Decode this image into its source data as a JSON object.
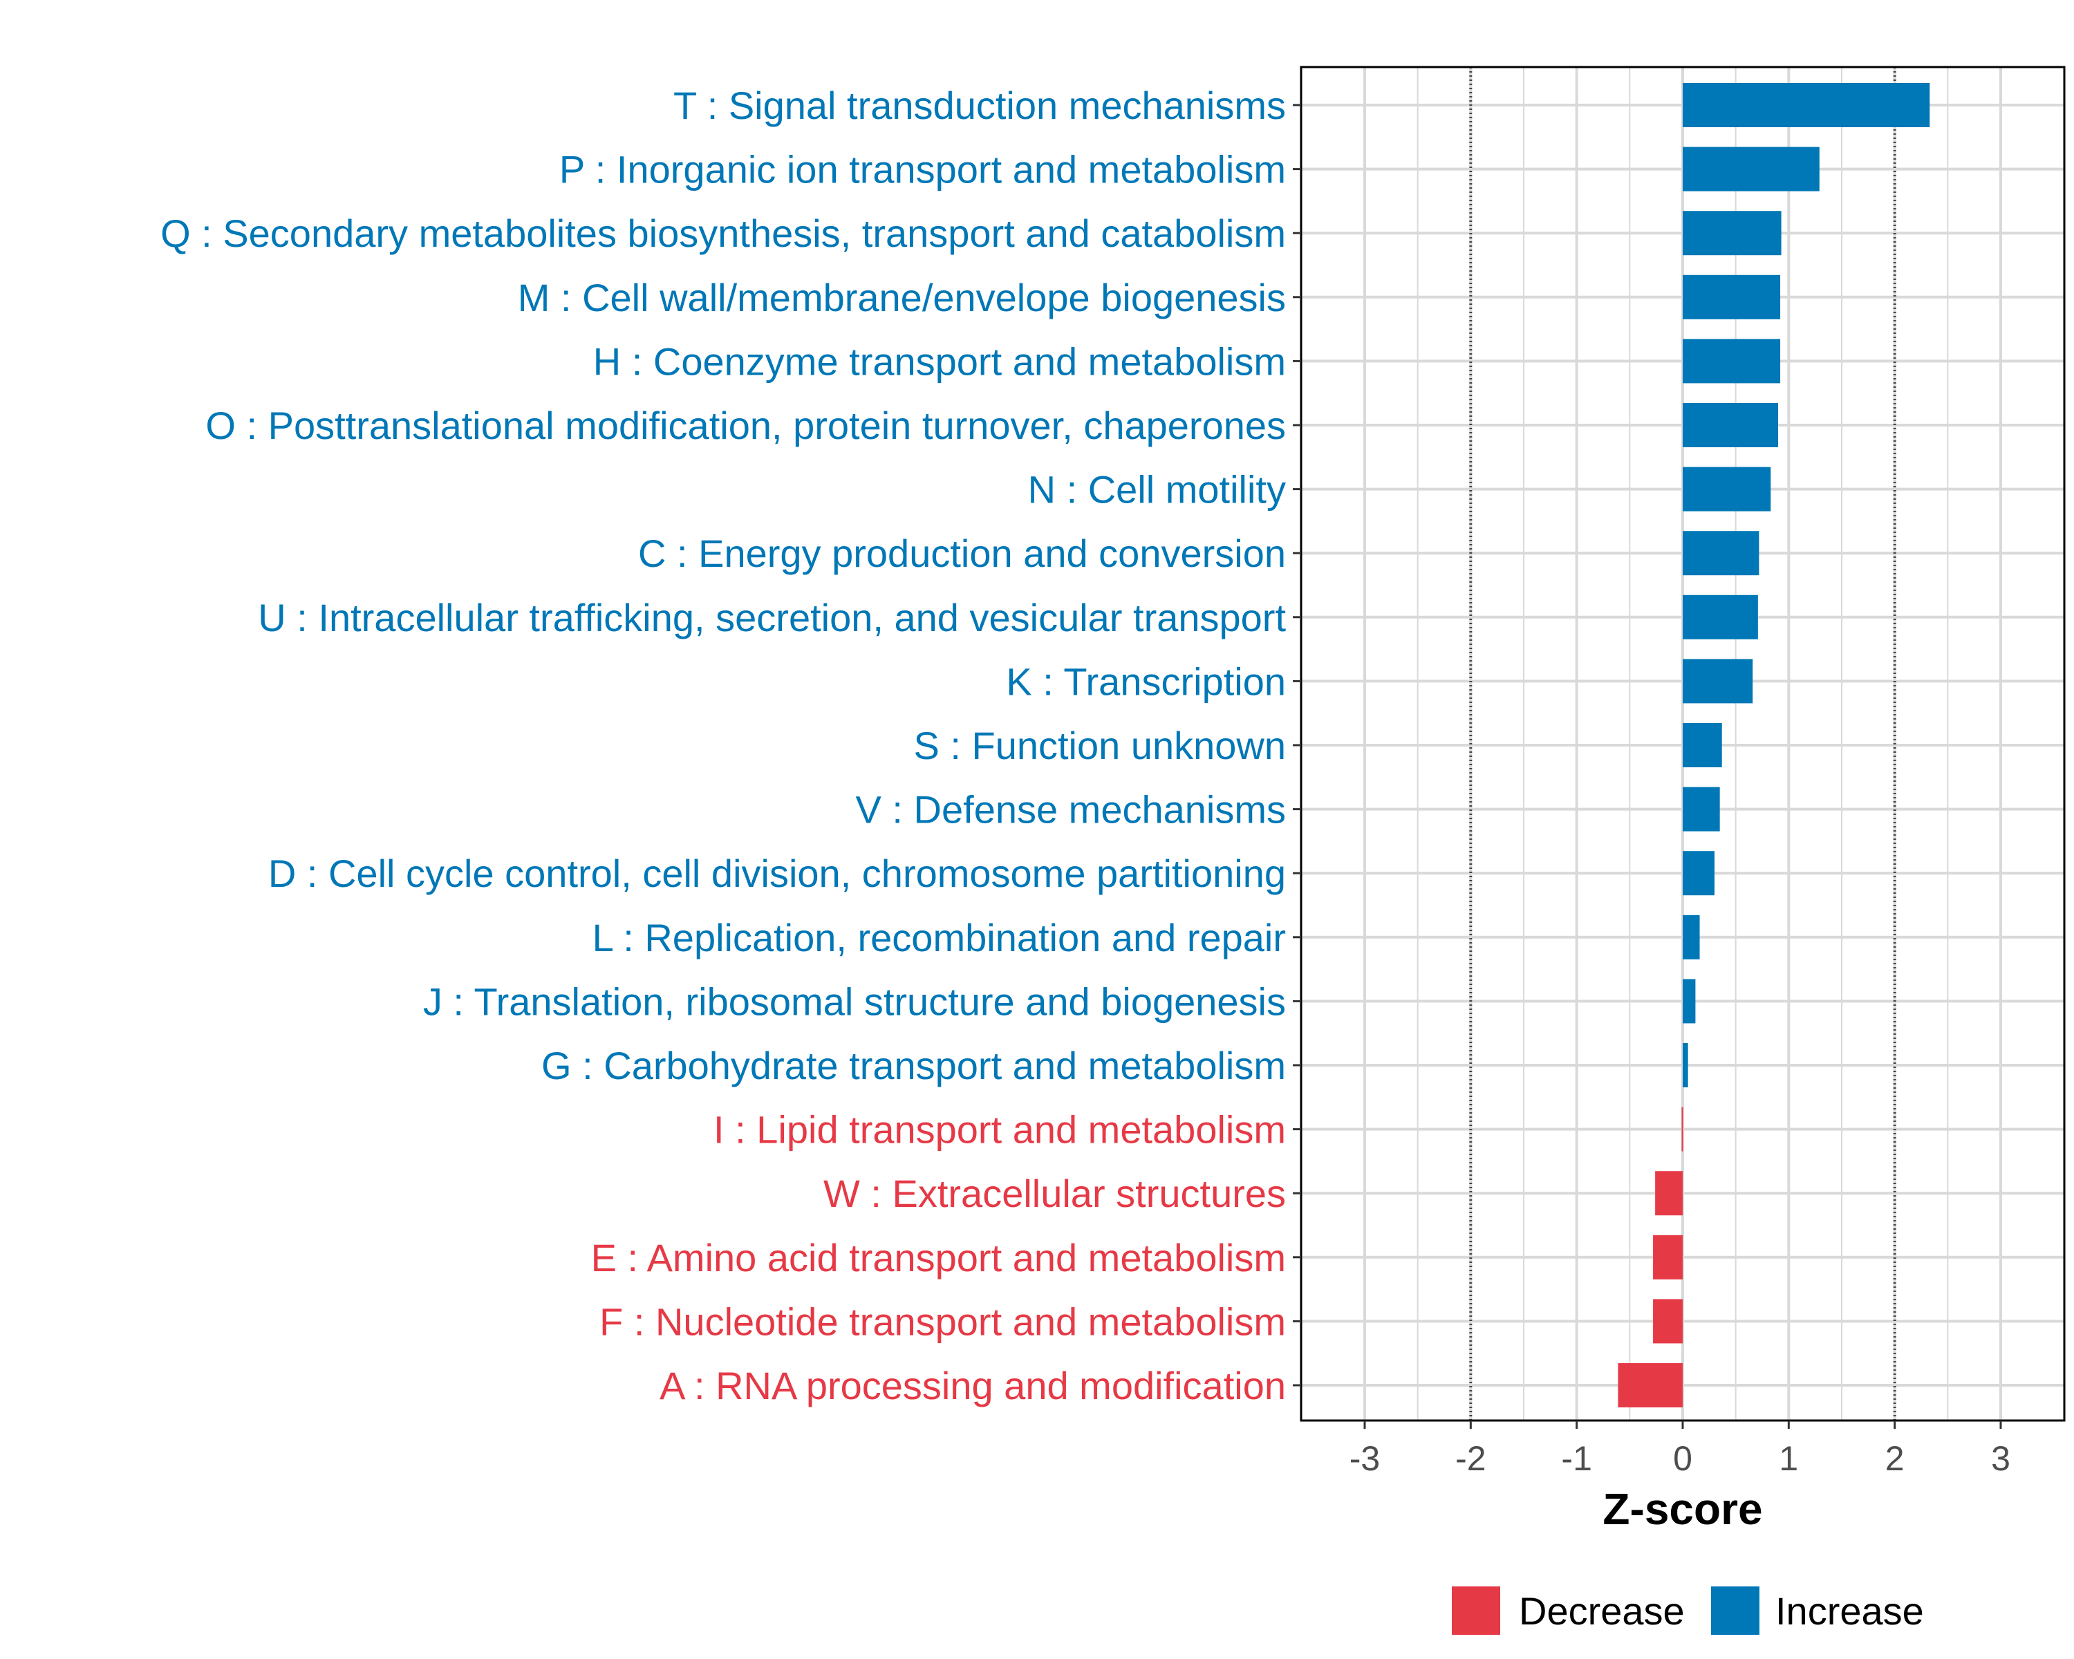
{
  "chart_data": {
    "type": "bar",
    "orientation": "horizontal",
    "title": "",
    "xlabel": "Z-score",
    "ylabel": "",
    "xlim": [
      -3.6,
      3.6
    ],
    "x_ticks": [
      -3,
      -2,
      -1,
      0,
      1,
      2,
      3
    ],
    "x_tick_labels": [
      "-3",
      "-2",
      "-1",
      "0",
      "1",
      "2",
      "3"
    ],
    "reference_lines": [
      -2,
      2
    ],
    "grid": true,
    "legend_position": "bottom",
    "colors": {
      "Decrease": "#E63946",
      "Increase": "#0077B6",
      "grid": "#D9D9D9",
      "reference_line": "#444444"
    },
    "legend": [
      {
        "name": "Decrease",
        "color": "#E63946"
      },
      {
        "name": "Increase",
        "color": "#0077B6"
      }
    ],
    "categories": [
      "T : Signal transduction mechanisms",
      "P : Inorganic ion transport and metabolism",
      "Q : Secondary metabolites biosynthesis, transport and catabolism",
      "M : Cell wall/membrane/envelope biogenesis",
      "H : Coenzyme transport and metabolism",
      "O : Posttranslational modification, protein turnover, chaperones",
      "N : Cell motility",
      "C : Energy production and conversion",
      "U : Intracellular trafficking, secretion, and vesicular transport",
      "K : Transcription",
      "S : Function unknown",
      "V : Defense mechanisms",
      "D : Cell cycle control, cell division, chromosome partitioning",
      "L : Replication, recombination and repair",
      "J : Translation, ribosomal structure and biogenesis",
      "G : Carbohydrate transport and metabolism",
      "I : Lipid transport and metabolism",
      "W : Extracellular structures",
      "E : Amino acid transport and metabolism",
      "F : Nucleotide transport and metabolism",
      "A : RNA processing and modification"
    ],
    "values": [
      2.33,
      1.29,
      0.93,
      0.92,
      0.92,
      0.9,
      0.83,
      0.72,
      0.71,
      0.66,
      0.37,
      0.35,
      0.3,
      0.16,
      0.12,
      0.05,
      -0.01,
      -0.26,
      -0.28,
      -0.28,
      -0.61
    ],
    "groups": [
      "Increase",
      "Increase",
      "Increase",
      "Increase",
      "Increase",
      "Increase",
      "Increase",
      "Increase",
      "Increase",
      "Increase",
      "Increase",
      "Increase",
      "Increase",
      "Increase",
      "Increase",
      "Increase",
      "Decrease",
      "Decrease",
      "Decrease",
      "Decrease",
      "Decrease"
    ]
  }
}
